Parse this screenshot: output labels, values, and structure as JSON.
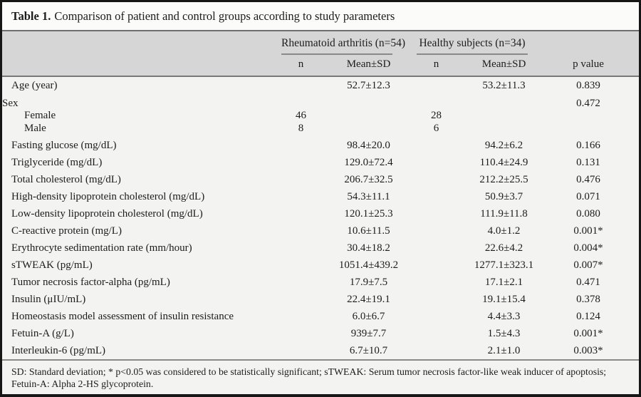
{
  "title": {
    "label": "Table 1.",
    "text": "Comparison of patient and control groups according to study parameters"
  },
  "columns": {
    "group_ra": "Rheumatoid arthritis (n=54)",
    "group_hs": "Healthy subjects (n=34)",
    "n": "n",
    "mean_sd": "Mean±SD",
    "p_value": "p value"
  },
  "rows": [
    {
      "label": "Age (year)",
      "ra_n": "",
      "ra_mean": "52.7±12.3",
      "hs_n": "",
      "hs_mean": "53.2±11.3",
      "p": "0.839",
      "indent": false,
      "group": false
    },
    {
      "label": "Sex",
      "ra_n": "",
      "ra_mean": "",
      "hs_n": "",
      "hs_mean": "",
      "p": "0.472",
      "indent": false,
      "group": true
    },
    {
      "label": "Female",
      "ra_n": "46",
      "ra_mean": "",
      "hs_n": "28",
      "hs_mean": "",
      "p": "",
      "indent": true,
      "group": false
    },
    {
      "label": "Male",
      "ra_n": "8",
      "ra_mean": "",
      "hs_n": "6",
      "hs_mean": "",
      "p": "",
      "indent": true,
      "group": false,
      "last_indent": true
    },
    {
      "label": "Fasting glucose (mg/dL)",
      "ra_n": "",
      "ra_mean": "98.4±20.0",
      "hs_n": "",
      "hs_mean": "94.2±6.2",
      "p": "0.166",
      "indent": false,
      "group": false
    },
    {
      "label": "Triglyceride (mg/dL)",
      "ra_n": "",
      "ra_mean": "129.0±72.4",
      "hs_n": "",
      "hs_mean": "110.4±24.9",
      "p": "0.131",
      "indent": false,
      "group": false
    },
    {
      "label": "Total cholesterol (mg/dL)",
      "ra_n": "",
      "ra_mean": "206.7±32.5",
      "hs_n": "",
      "hs_mean": "212.2±25.5",
      "p": "0.476",
      "indent": false,
      "group": false
    },
    {
      "label": "High-density lipoprotein cholesterol (mg/dL)",
      "ra_n": "",
      "ra_mean": "54.3±11.1",
      "hs_n": "",
      "hs_mean": "50.9±3.7",
      "p": "0.071",
      "indent": false,
      "group": false
    },
    {
      "label": "Low-density lipoprotein cholesterol (mg/dL)",
      "ra_n": "",
      "ra_mean": "120.1±25.3",
      "hs_n": "",
      "hs_mean": "111.9±11.8",
      "p": "0.080",
      "indent": false,
      "group": false
    },
    {
      "label": "C-reactive protein (mg/L)",
      "ra_n": "",
      "ra_mean": "10.6±11.5",
      "hs_n": "",
      "hs_mean": "4.0±1.2",
      "p": "0.001*",
      "indent": false,
      "group": false
    },
    {
      "label": "Erythrocyte sedimentation rate (mm/hour)",
      "ra_n": "",
      "ra_mean": "30.4±18.2",
      "hs_n": "",
      "hs_mean": "22.6±4.2",
      "p": "0.004*",
      "indent": false,
      "group": false
    },
    {
      "label": "sTWEAK (pg/mL)",
      "ra_n": "",
      "ra_mean": "1051.4±439.2",
      "hs_n": "",
      "hs_mean": "1277.1±323.1",
      "p": "0.007*",
      "indent": false,
      "group": false
    },
    {
      "label": "Tumor necrosis factor-alpha (pg/mL)",
      "ra_n": "",
      "ra_mean": "17.9±7.5",
      "hs_n": "",
      "hs_mean": "17.1±2.1",
      "p": "0.471",
      "indent": false,
      "group": false
    },
    {
      "label": "Insulin (μIU/mL)",
      "ra_n": "",
      "ra_mean": "22.4±19.1",
      "hs_n": "",
      "hs_mean": "19.1±15.4",
      "p": "0.378",
      "indent": false,
      "group": false
    },
    {
      "label": "Homeostasis model assessment of insulin resistance",
      "ra_n": "",
      "ra_mean": "6.0±6.7",
      "hs_n": "",
      "hs_mean": "4.4±3.3",
      "p": "0.124",
      "indent": false,
      "group": false
    },
    {
      "label": "Fetuin-A (g/L)",
      "ra_n": "",
      "ra_mean": "939±7.7",
      "hs_n": "",
      "hs_mean": "1.5±4.3",
      "p": "0.001*",
      "indent": false,
      "group": false
    },
    {
      "label": "Interleukin-6 (pg/mL)",
      "ra_n": "",
      "ra_mean": "6.7±10.7",
      "hs_n": "",
      "hs_mean": "2.1±1.0",
      "p": "0.003*",
      "indent": false,
      "group": false
    }
  ],
  "footnote": "SD: Standard deviation; * p<0.05 was considered to be statistically significant; sTWEAK: Serum tumor necrosis factor-like weak inducer of apoptosis; Fetuin-A: Alpha 2-HS glycoprotein.",
  "colors": {
    "frame_border": "#161616",
    "header_band": "#d6d6d6",
    "body_bg": "#f3f3f1",
    "title_bg": "#fbfbfa",
    "rule": "#8a8a8a",
    "text": "#1c1c1c"
  }
}
